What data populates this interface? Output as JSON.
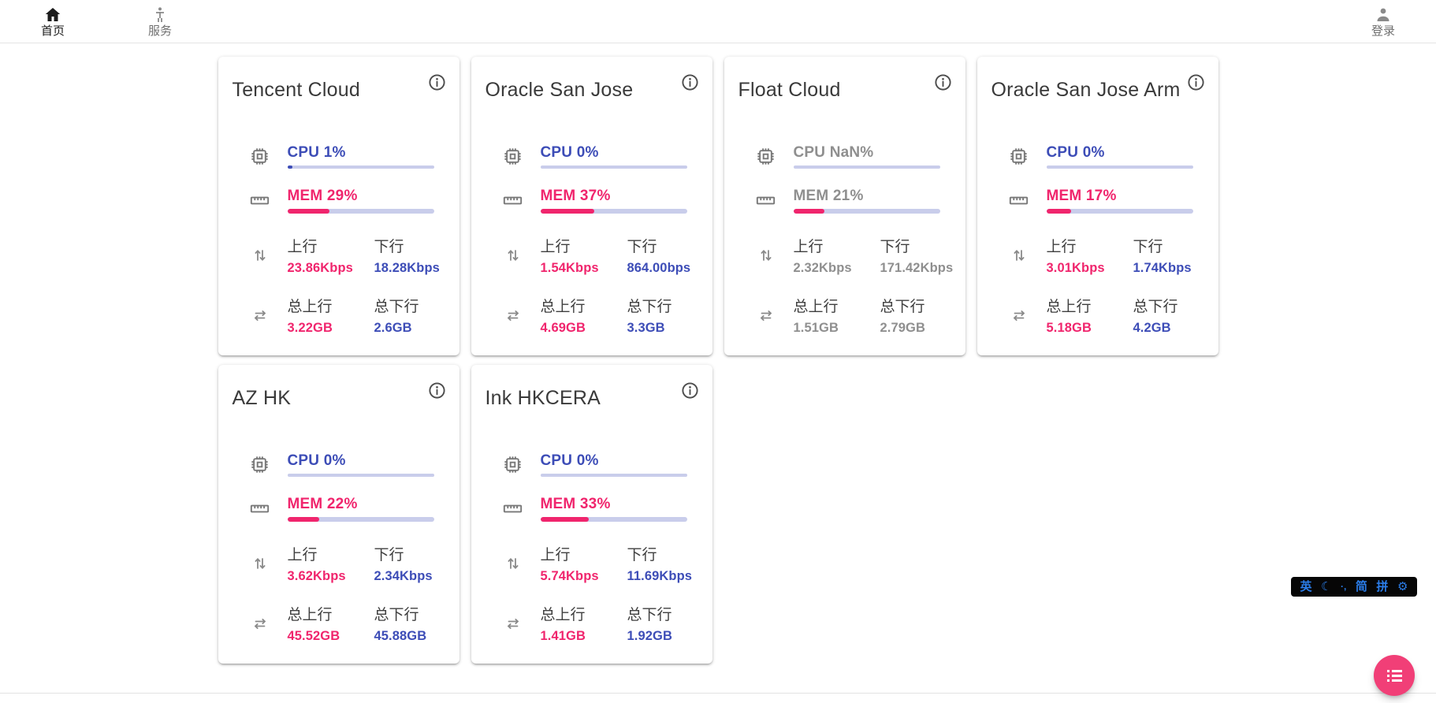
{
  "nav": {
    "items": [
      {
        "label": "首页",
        "icon": "home-icon",
        "active": true
      },
      {
        "label": "服务",
        "icon": "person-standing-icon",
        "active": false
      }
    ],
    "login": {
      "label": "登录",
      "icon": "person-icon"
    }
  },
  "labels": {
    "up": "上行",
    "down": "下行",
    "total_up": "总上行",
    "total_down": "总下行"
  },
  "cards": [
    {
      "name": "Tencent Cloud",
      "offline": false,
      "cpu_label": "CPU 1%",
      "cpu_pct": 1,
      "mem_label": "MEM 29%",
      "mem_pct": 29,
      "up_value": "23.86Kbps",
      "down_value": "18.28Kbps",
      "total_up_value": "3.22GB",
      "total_down_value": "2.6GB"
    },
    {
      "name": "Oracle San Jose",
      "offline": false,
      "cpu_label": "CPU 0%",
      "cpu_pct": 0,
      "mem_label": "MEM 37%",
      "mem_pct": 37,
      "up_value": "1.54Kbps",
      "down_value": "864.00bps",
      "total_up_value": "4.69GB",
      "total_down_value": "3.3GB"
    },
    {
      "name": "Float Cloud",
      "offline": true,
      "cpu_label": "CPU NaN%",
      "cpu_pct": 0,
      "mem_label": "MEM 21%",
      "mem_pct": 21,
      "up_value": "2.32Kbps",
      "down_value": "171.42Kbps",
      "total_up_value": "1.51GB",
      "total_down_value": "2.79GB"
    },
    {
      "name": "Oracle San Jose Arm",
      "offline": false,
      "cpu_label": "CPU 0%",
      "cpu_pct": 0,
      "mem_label": "MEM 17%",
      "mem_pct": 17,
      "up_value": "3.01Kbps",
      "down_value": "1.74Kbps",
      "total_up_value": "5.18GB",
      "total_down_value": "4.2GB"
    },
    {
      "name": "AZ HK",
      "offline": false,
      "cpu_label": "CPU 0%",
      "cpu_pct": 0,
      "mem_label": "MEM 22%",
      "mem_pct": 22,
      "up_value": "3.62Kbps",
      "down_value": "2.34Kbps",
      "total_up_value": "45.52GB",
      "total_down_value": "45.88GB"
    },
    {
      "name": "Ink HKCERA",
      "offline": false,
      "cpu_label": "CPU 0%",
      "cpu_pct": 0,
      "mem_label": "MEM 33%",
      "mem_pct": 33,
      "up_value": "5.74Kbps",
      "down_value": "11.69Kbps",
      "total_up_value": "1.41GB",
      "total_down_value": "1.92GB"
    }
  ],
  "ime": {
    "items": [
      "英",
      "☾",
      "·,",
      "简",
      "拼",
      "⚙"
    ]
  },
  "colors": {
    "blue": "#3d4db7",
    "pink": "#f0256d",
    "muted": "#8f8f8f",
    "track": "#c9cdeb",
    "fab": "#f13f77",
    "ime_blue": "#2b7de9"
  }
}
